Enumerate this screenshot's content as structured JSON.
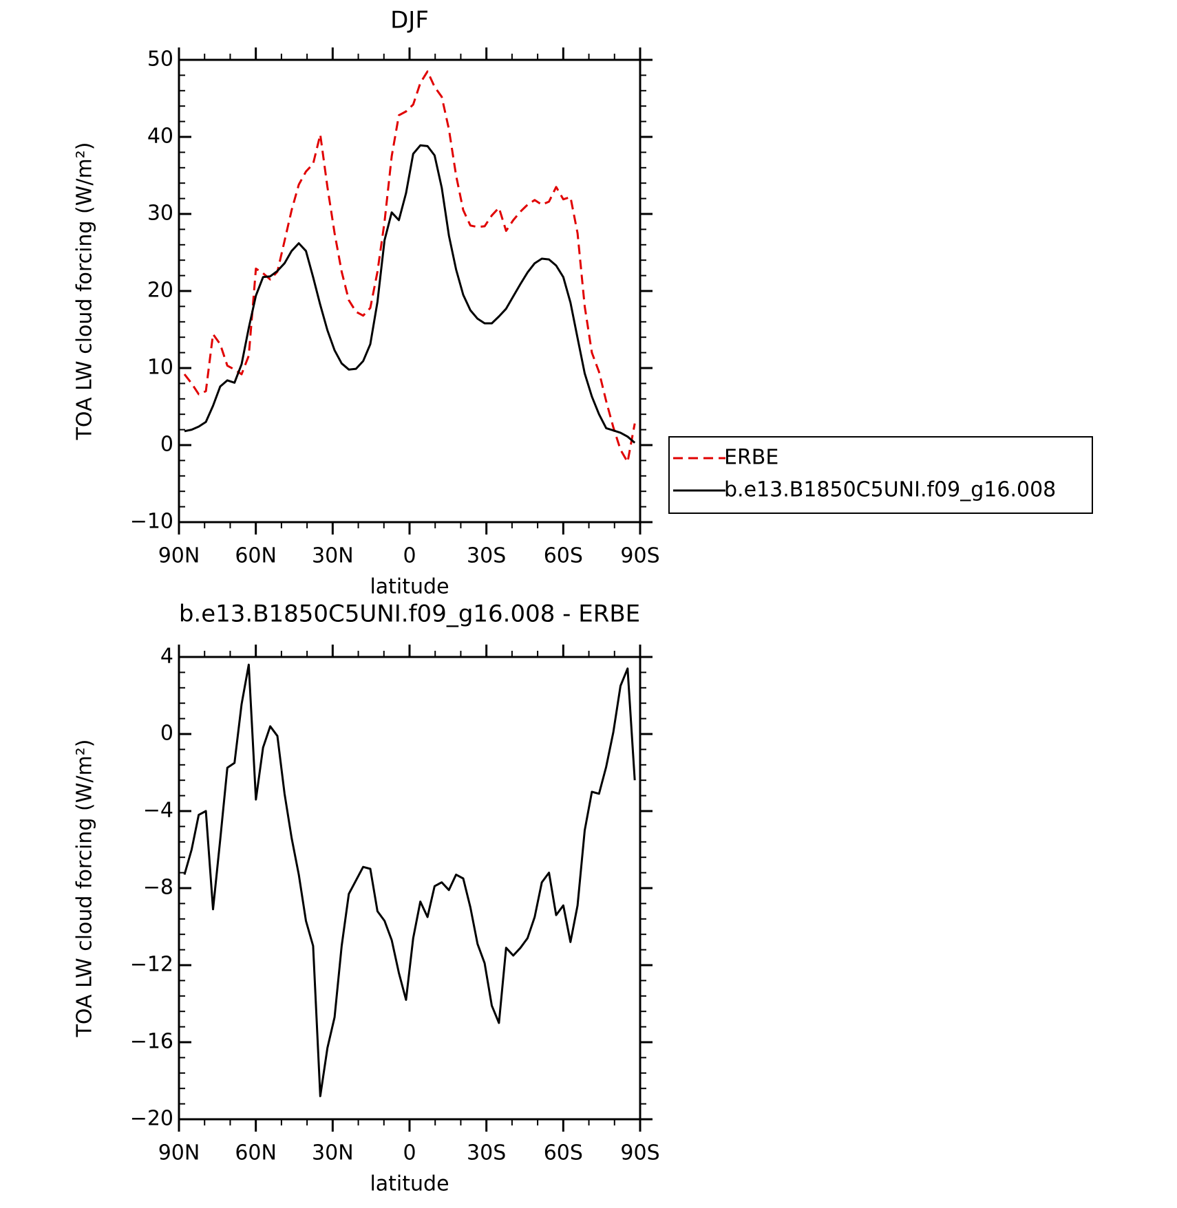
{
  "chart_data": [
    {
      "type": "line",
      "title": "DJF",
      "xlabel": "latitude",
      "ylabel": "TOA LW cloud forcing (W/m²)",
      "xlim": [
        90,
        -90
      ],
      "xticks": [
        {
          "value": 90,
          "label": "90N"
        },
        {
          "value": 60,
          "label": "60N"
        },
        {
          "value": 30,
          "label": "30N"
        },
        0,
        {
          "value": -30,
          "label": "30S"
        },
        {
          "value": -60,
          "label": "60S"
        },
        {
          "value": -90,
          "label": "90S"
        }
      ],
      "ylim": [
        -10,
        50
      ],
      "yticks": [
        {
          "value": -10,
          "label": "−10"
        },
        0,
        10,
        20,
        30,
        40,
        50
      ],
      "legend": "outside-right",
      "x": [
        87.86,
        85.07,
        82.28,
        79.49,
        76.7,
        73.91,
        71.12,
        68.33,
        65.54,
        62.75,
        59.96,
        57.17,
        54.38,
        51.59,
        48.8,
        46.01,
        43.22,
        40.43,
        37.64,
        34.85,
        32.06,
        29.27,
        26.48,
        23.69,
        20.9,
        18.11,
        15.32,
        12.53,
        9.74,
        6.95,
        4.16,
        1.37,
        -1.42,
        -4.21,
        -7.0,
        -9.79,
        -12.58,
        -15.37,
        -18.16,
        -20.95,
        -23.74,
        -26.53,
        -29.32,
        -32.11,
        -34.9,
        -37.69,
        -40.48,
        -43.27,
        -46.06,
        -48.85,
        -51.64,
        -54.43,
        -57.22,
        -60.01,
        -62.8,
        -65.59,
        -68.38,
        -71.17,
        -73.96,
        -76.75,
        -79.54,
        -82.33,
        -85.12,
        -87.91
      ],
      "series": [
        {
          "name": "ERBE",
          "color": "#e00000",
          "linestyle": "dashed",
          "values": [
            9.2,
            8.0,
            6.6,
            7.0,
            14.4,
            13.1,
            10.3,
            9.8,
            9.2,
            11.6,
            22.9,
            22.3,
            21.5,
            22.5,
            26.5,
            30.5,
            33.8,
            35.5,
            36.5,
            40.3,
            33.5,
            27.5,
            22.5,
            18.8,
            17.3,
            16.8,
            17.8,
            22.5,
            29,
            37.5,
            42.8,
            43.3,
            44.2,
            47,
            48.5,
            46.5,
            45.2,
            41,
            35,
            30.5,
            28.5,
            28.3,
            28.4,
            29.8,
            30.8,
            27.8,
            29.2,
            30.3,
            31.2,
            31.8,
            31.2,
            31.6,
            33.5,
            31.9,
            32.2,
            27.5,
            18,
            12,
            9.5,
            5.7,
            2.3,
            -0.6,
            -2.2,
            2.8
          ]
        },
        {
          "name": "b.e13.B1850C5UNI.f09_g16.008",
          "color": "#000000",
          "linestyle": "solid",
          "values": [
            1.8,
            2.0,
            2.4,
            3.0,
            5.1,
            7.6,
            8.4,
            8.1,
            10.5,
            15.2,
            19.4,
            21.8,
            21.9,
            22.6,
            23.6,
            25.2,
            26.2,
            25.2,
            21.8,
            18.2,
            14.9,
            12.3,
            10.6,
            9.8,
            9.9,
            10.9,
            13.1,
            18.6,
            26.6,
            30.2,
            29.2,
            32.7,
            37.8,
            38.9,
            38.8,
            37.6,
            33.4,
            27.2,
            22.8,
            19.5,
            17.5,
            16.4,
            15.8,
            15.8,
            16.7,
            17.7,
            19.3,
            20.9,
            22.4,
            23.6,
            24.2,
            24.1,
            23.3,
            21.8,
            18.5,
            13.9,
            9.3,
            6.3,
            4.0,
            2.2,
            1.9,
            1.6,
            1.1,
            0.3
          ]
        }
      ]
    },
    {
      "type": "line",
      "title": "b.e13.B1850C5UNI.f09_g16.008 - ERBE",
      "xlabel": "latitude",
      "ylabel": "TOA LW cloud forcing (W/m²)",
      "xlim": [
        90,
        -90
      ],
      "xticks": [
        {
          "value": 90,
          "label": "90N"
        },
        {
          "value": 60,
          "label": "60N"
        },
        {
          "value": 30,
          "label": "30N"
        },
        0,
        {
          "value": -30,
          "label": "30S"
        },
        {
          "value": -60,
          "label": "60S"
        },
        {
          "value": -90,
          "label": "90S"
        }
      ],
      "ylim": [
        -20,
        4
      ],
      "yticks": [
        {
          "value": -20,
          "label": "−20"
        },
        {
          "value": -16,
          "label": "−16"
        },
        {
          "value": -12,
          "label": "−12"
        },
        {
          "value": -8,
          "label": "−8"
        },
        {
          "value": -4,
          "label": "−4"
        },
        0,
        4
      ],
      "x": [
        87.86,
        85.07,
        82.28,
        79.49,
        76.7,
        73.91,
        71.12,
        68.33,
        65.54,
        62.75,
        59.96,
        57.17,
        54.38,
        51.59,
        48.8,
        46.01,
        43.22,
        40.43,
        37.64,
        34.85,
        32.06,
        29.27,
        26.48,
        23.69,
        20.9,
        18.11,
        15.32,
        12.53,
        9.74,
        6.95,
        4.16,
        1.37,
        -1.42,
        -4.21,
        -7.0,
        -9.79,
        -12.58,
        -15.37,
        -18.16,
        -20.95,
        -23.74,
        -26.53,
        -29.32,
        -32.11,
        -34.9,
        -37.69,
        -40.48,
        -43.27,
        -46.06,
        -48.85,
        -51.64,
        -54.43,
        -57.22,
        -60.01,
        -62.8,
        -65.59,
        -68.38,
        -71.17,
        -73.96,
        -76.75,
        -79.54,
        -82.33,
        -85.12,
        -87.91
      ],
      "series": [
        {
          "color": "#000000",
          "linestyle": "solid",
          "values": [
            -7.3,
            -6.0,
            -4.2,
            -4.0,
            -9.1,
            -5.5,
            -1.75,
            -1.5,
            1.55,
            3.6,
            -3.4,
            -0.7,
            0.4,
            -0.1,
            -3.1,
            -5.4,
            -7.3,
            -9.7,
            -11.0,
            -18.8,
            -16.3,
            -14.7,
            -11.0,
            -8.3,
            -7.6,
            -6.9,
            -7.0,
            -9.2,
            -9.7,
            -10.7,
            -12.4,
            -13.8,
            -10.6,
            -8.7,
            -9.5,
            -7.9,
            -7.7,
            -8.1,
            -7.3,
            -7.5,
            -9.0,
            -10.9,
            -11.9,
            -14.1,
            -15.0,
            -11.1,
            -11.5,
            -11.1,
            -10.6,
            -9.5,
            -7.7,
            -7.2,
            -9.4,
            -8.9,
            -10.8,
            -8.9,
            -5.0,
            -3.0,
            -3.1,
            -1.7,
            0.1,
            2.5,
            3.4,
            -2.4
          ]
        }
      ]
    }
  ]
}
